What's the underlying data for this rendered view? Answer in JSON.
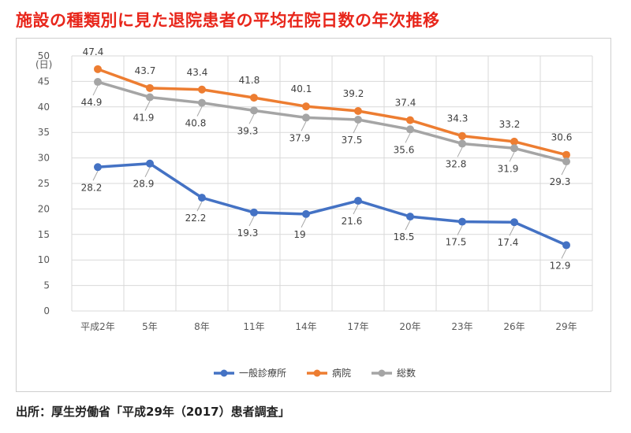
{
  "header": {
    "title": "施設の種類別に見た退院患者の平均在院日数の年次推移"
  },
  "footer": {
    "source": "出所：厚生労働省「平成29年（2017）患者調査」"
  },
  "chart_data": {
    "type": "line",
    "ylabel": "(日)",
    "ylim": [
      0,
      50
    ],
    "yticks": [
      0,
      5,
      10,
      15,
      20,
      25,
      30,
      35,
      40,
      45,
      50
    ],
    "categories": [
      "平成2年",
      "5年",
      "8年",
      "11年",
      "14年",
      "17年",
      "20年",
      "23年",
      "26年",
      "29年"
    ],
    "grid": true,
    "legend": "bottom",
    "series": [
      {
        "name": "一般診療所",
        "color": "#4472c4",
        "values": [
          28.2,
          28.9,
          22.2,
          19.3,
          19,
          21.6,
          18.5,
          17.5,
          17.4,
          12.9
        ],
        "labels": [
          "28.2",
          "28.9",
          "22.2",
          "19.3",
          "19",
          "21.6",
          "18.5",
          "17.5",
          "17.4",
          "12.9"
        ]
      },
      {
        "name": "病院",
        "color": "#ed7d31",
        "values": [
          47.4,
          43.7,
          43.4,
          41.8,
          40.1,
          39.2,
          37.4,
          34.3,
          33.2,
          30.6
        ],
        "labels": [
          "47.4",
          "43.7",
          "43.4",
          "41.8",
          "40.1",
          "39.2",
          "37.4",
          "34.3",
          "33.2",
          "30.6"
        ]
      },
      {
        "name": "総数",
        "color": "#a5a5a5",
        "values": [
          44.9,
          41.9,
          40.8,
          39.3,
          37.9,
          37.5,
          35.6,
          32.8,
          31.9,
          29.3
        ],
        "labels": [
          "44.9",
          "41.9",
          "40.8",
          "39.3",
          "37.9",
          "37.5",
          "35.6",
          "32.8",
          "31.9",
          "29.3"
        ]
      }
    ]
  }
}
